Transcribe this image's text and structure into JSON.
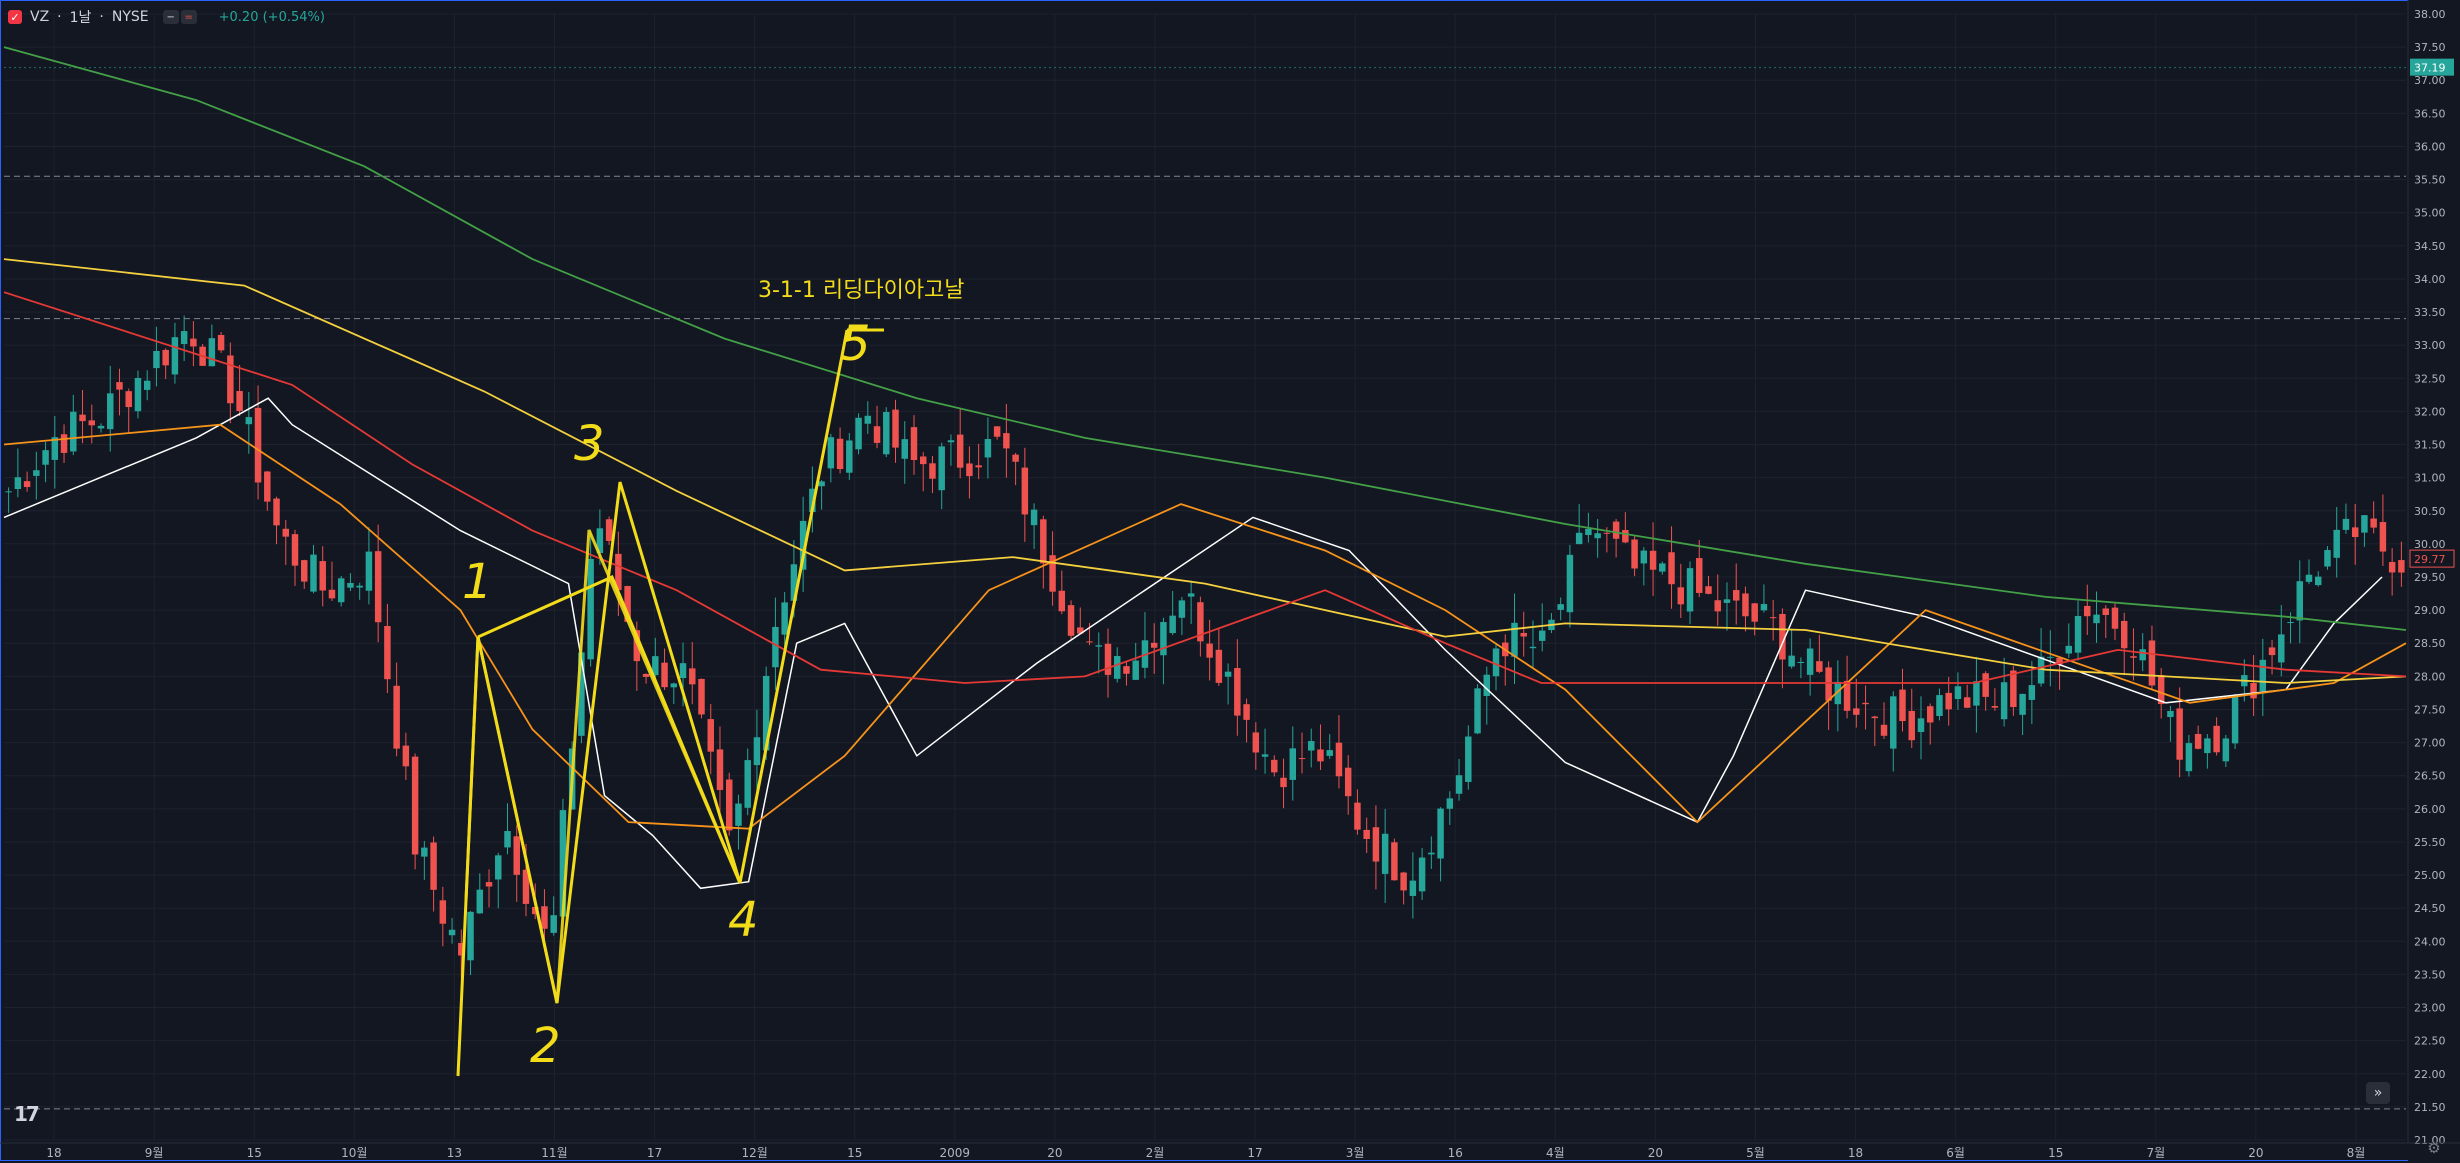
{
  "header": {
    "symbol": "VZ",
    "separator1": "·",
    "interval": "1날",
    "separator2": "·",
    "exchange": "NYSE",
    "change": "+0.20 (+0.54%)"
  },
  "annotations": {
    "title": "3-1-1 리딩다이아고날",
    "wave_labels": [
      "1",
      "2",
      "3",
      "4",
      "5"
    ]
  },
  "colors": {
    "background": "#131722",
    "grid": "#1e222d",
    "up": "#26a69a",
    "down": "#ef5350",
    "ma_fast": "#ffffff",
    "ma_orange": "#f7931a",
    "ma_yellow": "#f4d03f",
    "ma_red": "#e53935",
    "ma_green": "#43a047",
    "annotation": "#f2dc1a",
    "last_price_bg": "#26a69a",
    "current_price_border": "#ef5350"
  },
  "chart_data": {
    "type": "candlestick",
    "symbol": "VZ",
    "interval": "1D",
    "exchange": "NYSE",
    "y_axis": {
      "min": 21.0,
      "max": 38.0,
      "ticks": [
        "38.00",
        "37.50",
        "37.00",
        "36.50",
        "36.00",
        "35.50",
        "35.00",
        "34.50",
        "34.00",
        "33.50",
        "33.00",
        "32.50",
        "32.00",
        "31.50",
        "31.00",
        "30.50",
        "30.00",
        "29.50",
        "29.00",
        "28.50",
        "28.00",
        "27.50",
        "27.00",
        "26.50",
        "26.00",
        "25.50",
        "25.00",
        "24.50",
        "24.00",
        "23.50",
        "23.00",
        "22.50",
        "22.00",
        "21.50",
        "21.00"
      ]
    },
    "x_axis": {
      "labels": [
        "18",
        "9월",
        "15",
        "10월",
        "13",
        "11월",
        "17",
        "12월",
        "15",
        "2009",
        "20",
        "2월",
        "17",
        "3월",
        "16",
        "4월",
        "20",
        "5월",
        "18",
        "6월",
        "15",
        "7월",
        "20",
        "8월"
      ]
    },
    "price_labels": {
      "last": "37.19",
      "current": "29.77"
    },
    "horizontal_lines": [
      37.19,
      35.55,
      33.4,
      21.47
    ],
    "ohlc_keypoints": [
      {
        "date": "08-15",
        "close": 30.8
      },
      {
        "date": "08-18",
        "close": 31.6
      },
      {
        "date": "08-25",
        "close": 31.9
      },
      {
        "date": "09-02",
        "close": 32.6
      },
      {
        "date": "09-09",
        "close": 33.3
      },
      {
        "date": "09-15",
        "close": 32.3
      },
      {
        "date": "09-22",
        "close": 30.1
      },
      {
        "date": "09-29",
        "close": 29.3
      },
      {
        "date": "10-06",
        "close": 29.7
      },
      {
        "date": "10-10",
        "close": 25.5
      },
      {
        "date": "10-13",
        "close": 23.8
      },
      {
        "date": "10-20",
        "close": 25.8
      },
      {
        "date": "10-27",
        "close": 23.8
      },
      {
        "date": "10-31",
        "close": 30.5
      },
      {
        "date": "11-07",
        "close": 28.2
      },
      {
        "date": "11-14",
        "close": 28.0
      },
      {
        "date": "11-20",
        "close": 25.4
      },
      {
        "date": "11-25",
        "close": 28.9
      },
      {
        "date": "12-03",
        "close": 31.1
      },
      {
        "date": "12-09",
        "close": 32.0
      },
      {
        "date": "12-15",
        "close": 31.2
      },
      {
        "date": "12-29",
        "close": 31.3
      },
      {
        "date": "01-06",
        "close": 31.5
      },
      {
        "date": "01-09",
        "close": 29.8
      },
      {
        "date": "01-16",
        "close": 28.2
      },
      {
        "date": "01-27",
        "close": 28.4
      },
      {
        "date": "02-05",
        "close": 29.3
      },
      {
        "date": "02-13",
        "close": 28.0
      },
      {
        "date": "02-20",
        "close": 26.6
      },
      {
        "date": "02-27",
        "close": 26.9
      },
      {
        "date": "03-06",
        "close": 25.7
      },
      {
        "date": "03-09",
        "close": 25.0
      },
      {
        "date": "03-16",
        "close": 26.3
      },
      {
        "date": "03-23",
        "close": 28.6
      },
      {
        "date": "03-31",
        "close": 28.4
      },
      {
        "date": "04-02",
        "close": 30.3
      },
      {
        "date": "04-08",
        "close": 29.6
      },
      {
        "date": "04-20",
        "close": 29.4
      },
      {
        "date": "04-29",
        "close": 29.0
      },
      {
        "date": "05-11",
        "close": 28.8
      },
      {
        "date": "05-18",
        "close": 28.0
      },
      {
        "date": "05-27",
        "close": 27.6
      },
      {
        "date": "06-05",
        "close": 27.3
      },
      {
        "date": "06-12",
        "close": 27.7
      },
      {
        "date": "06-22",
        "close": 27.6
      },
      {
        "date": "06-26",
        "close": 28.0
      },
      {
        "date": "07-02",
        "close": 29.1
      },
      {
        "date": "07-07",
        "close": 28.7
      },
      {
        "date": "07-10",
        "close": 27.0
      },
      {
        "date": "07-16",
        "close": 27.2
      },
      {
        "date": "07-24",
        "close": 28.3
      },
      {
        "date": "07-31",
        "close": 29.6
      },
      {
        "date": "08-04",
        "close": 30.2
      },
      {
        "date": "08-07",
        "close": 29.77
      }
    ],
    "moving_averages": [
      {
        "color": "white",
        "points": [
          [
            0,
            30.4
          ],
          [
            0.08,
            31.6
          ],
          [
            0.11,
            32.2
          ],
          [
            0.12,
            31.8
          ],
          [
            0.19,
            30.2
          ],
          [
            0.235,
            29.4
          ],
          [
            0.25,
            26.2
          ],
          [
            0.27,
            25.6
          ],
          [
            0.29,
            24.8
          ],
          [
            0.31,
            24.9
          ],
          [
            0.33,
            28.5
          ],
          [
            0.35,
            28.8
          ],
          [
            0.38,
            26.8
          ],
          [
            0.43,
            28.2
          ],
          [
            0.52,
            30.4
          ],
          [
            0.56,
            29.9
          ],
          [
            0.6,
            28.4
          ],
          [
            0.65,
            26.7
          ],
          [
            0.705,
            25.8
          ],
          [
            0.72,
            26.8
          ],
          [
            0.75,
            29.3
          ],
          [
            0.8,
            28.9
          ],
          [
            0.9,
            27.6
          ],
          [
            0.95,
            27.8
          ],
          [
            0.97,
            28.8
          ],
          [
            0.99,
            29.5
          ]
        ]
      },
      {
        "color": "orange",
        "points": [
          [
            0,
            31.5
          ],
          [
            0.09,
            31.8
          ],
          [
            0.14,
            30.6
          ],
          [
            0.19,
            29.0
          ],
          [
            0.22,
            27.2
          ],
          [
            0.26,
            25.8
          ],
          [
            0.31,
            25.7
          ],
          [
            0.35,
            26.8
          ],
          [
            0.41,
            29.3
          ],
          [
            0.49,
            30.6
          ],
          [
            0.55,
            29.9
          ],
          [
            0.6,
            29.0
          ],
          [
            0.65,
            27.8
          ],
          [
            0.705,
            25.8
          ],
          [
            0.8,
            29.0
          ],
          [
            0.91,
            27.6
          ],
          [
            0.97,
            27.9
          ],
          [
            1.0,
            28.5
          ]
        ]
      },
      {
        "color": "yellow",
        "points": [
          [
            0,
            34.3
          ],
          [
            0.1,
            33.9
          ],
          [
            0.2,
            32.3
          ],
          [
            0.28,
            30.8
          ],
          [
            0.35,
            29.6
          ],
          [
            0.42,
            29.8
          ],
          [
            0.5,
            29.4
          ],
          [
            0.55,
            29.0
          ],
          [
            0.6,
            28.6
          ],
          [
            0.65,
            28.8
          ],
          [
            0.75,
            28.7
          ],
          [
            0.85,
            28.1
          ],
          [
            0.95,
            27.9
          ],
          [
            1.0,
            28.0
          ]
        ]
      },
      {
        "color": "red",
        "points": [
          [
            0,
            33.8
          ],
          [
            0.12,
            32.4
          ],
          [
            0.17,
            31.2
          ],
          [
            0.22,
            30.2
          ],
          [
            0.28,
            29.3
          ],
          [
            0.34,
            28.1
          ],
          [
            0.4,
            27.9
          ],
          [
            0.45,
            28.0
          ],
          [
            0.55,
            29.3
          ],
          [
            0.6,
            28.5
          ],
          [
            0.64,
            27.9
          ],
          [
            0.75,
            27.9
          ],
          [
            0.82,
            27.9
          ],
          [
            0.88,
            28.4
          ],
          [
            0.95,
            28.1
          ],
          [
            1.0,
            28.0
          ]
        ]
      },
      {
        "color": "green",
        "points": [
          [
            0,
            37.5
          ],
          [
            0.08,
            36.7
          ],
          [
            0.15,
            35.7
          ],
          [
            0.22,
            34.3
          ],
          [
            0.3,
            33.1
          ],
          [
            0.38,
            32.2
          ],
          [
            0.45,
            31.6
          ],
          [
            0.55,
            31.0
          ],
          [
            0.65,
            30.3
          ],
          [
            0.75,
            29.7
          ],
          [
            0.85,
            29.2
          ],
          [
            0.95,
            28.9
          ],
          [
            1.0,
            28.7
          ]
        ]
      }
    ]
  }
}
